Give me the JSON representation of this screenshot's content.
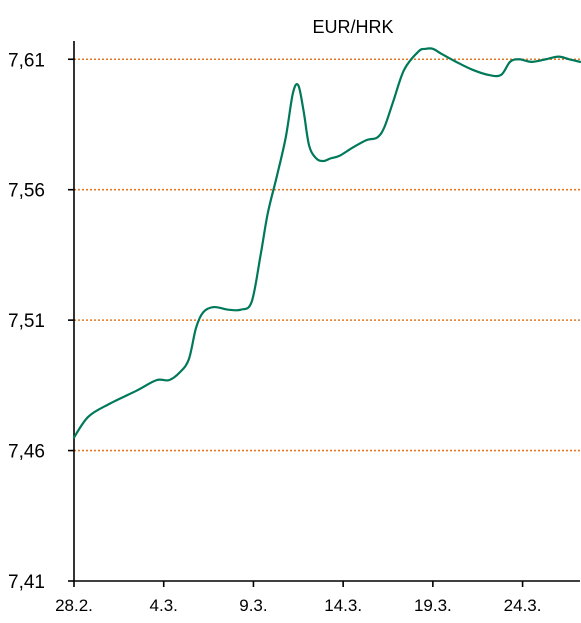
{
  "chart_data": {
    "type": "line",
    "title": "EUR/HRK",
    "xlabel": "",
    "ylabel": "",
    "x_tick_labels": [
      "28.2.",
      "4.3.",
      "9.3.",
      "14.3.",
      "19.3.",
      "24.3."
    ],
    "x_tick_days": [
      0,
      5,
      10,
      15,
      20,
      25
    ],
    "x_range_days": [
      0,
      28.2
    ],
    "y_ticks": [
      7.41,
      7.46,
      7.51,
      7.56,
      7.61
    ],
    "y_tick_labels": [
      "7,41",
      "7,46",
      "7,51",
      "7,56",
      "7,61"
    ],
    "ylim": [
      7.41,
      7.617
    ],
    "grid": {
      "horizontal": true,
      "vertical": false,
      "style": "dotted",
      "color": "#E87722"
    },
    "legend": "none",
    "series": [
      {
        "color": "#00785A",
        "x": [
          0,
          0.8,
          2,
          3.5,
          4.6,
          5.3,
          5.9,
          6.4,
          6.8,
          7.2,
          7.8,
          8.6,
          9.3,
          9.9,
          10.4,
          10.8,
          11.3,
          11.8,
          12.2,
          12.5,
          12.8,
          13.1,
          13.5,
          13.9,
          14.3,
          14.8,
          15.5,
          16.3,
          16.9,
          17.3,
          17.8,
          18.4,
          19.2,
          19.6,
          20.0,
          20.5,
          21.3,
          22.2,
          23.1,
          23.8,
          24.3,
          24.8,
          25.5,
          26.3,
          27.0,
          27.6,
          28.2
        ],
        "values": [
          7.465,
          7.473,
          7.478,
          7.483,
          7.487,
          7.487,
          7.49,
          7.495,
          7.507,
          7.513,
          7.515,
          7.514,
          7.514,
          7.517,
          7.535,
          7.551,
          7.565,
          7.58,
          7.597,
          7.6,
          7.59,
          7.577,
          7.572,
          7.571,
          7.572,
          7.573,
          7.576,
          7.579,
          7.58,
          7.584,
          7.594,
          7.606,
          7.613,
          7.614,
          7.614,
          7.612,
          7.609,
          7.606,
          7.604,
          7.604,
          7.609,
          7.61,
          7.609,
          7.61,
          7.611,
          7.61,
          7.609
        ]
      }
    ]
  }
}
